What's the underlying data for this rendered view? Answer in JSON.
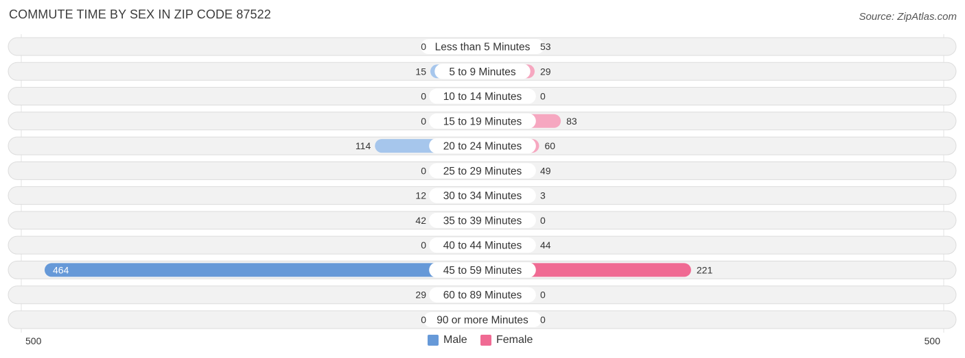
{
  "title": "COMMUTE TIME BY SEX IN ZIP CODE 87522",
  "source": "Source: ZipAtlas.com",
  "colors": {
    "male": "#a6c6ec",
    "male_strong": "#6699d8",
    "female": "#f6a7c0",
    "female_strong": "#f06a93",
    "row_bg": "#f2f2f2",
    "row_border": "#dcdcdc"
  },
  "chart_data": {
    "type": "bar",
    "orientation": "horizontal-diverging",
    "categories": [
      "Less than 5 Minutes",
      "5 to 9 Minutes",
      "10 to 14 Minutes",
      "15 to 19 Minutes",
      "20 to 24 Minutes",
      "25 to 29 Minutes",
      "30 to 34 Minutes",
      "35 to 39 Minutes",
      "40 to 44 Minutes",
      "45 to 59 Minutes",
      "60 to 89 Minutes",
      "90 or more Minutes"
    ],
    "series": [
      {
        "name": "Male",
        "values": [
          0,
          15,
          0,
          0,
          114,
          0,
          12,
          42,
          0,
          464,
          29,
          0
        ]
      },
      {
        "name": "Female",
        "values": [
          53,
          29,
          0,
          83,
          60,
          49,
          3,
          0,
          44,
          221,
          0,
          0
        ]
      }
    ],
    "xlim": [
      -500,
      500
    ],
    "axis_labels": {
      "left": "500",
      "right": "500"
    },
    "legend": {
      "position": "bottom-center",
      "entries": [
        "Male",
        "Female"
      ]
    }
  }
}
